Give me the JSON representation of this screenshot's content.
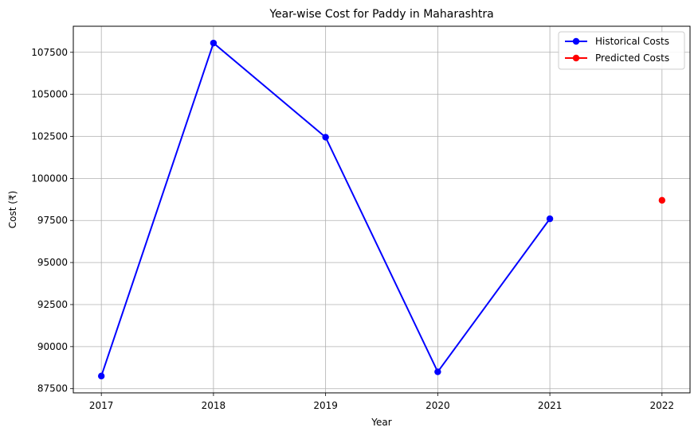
{
  "chart_data": {
    "type": "line",
    "title": "Year-wise Cost for Paddy in Maharashtra",
    "xlabel": "Year",
    "ylabel": "Cost (₹)",
    "x_ticks": [
      "2017",
      "2018",
      "2019",
      "2020",
      "2021",
      "2022"
    ],
    "y_ticks": [
      "87500",
      "90000",
      "92500",
      "95000",
      "97500",
      "100000",
      "102500",
      "105000",
      "107500"
    ],
    "xlim": [
      2016.75,
      2022.25
    ],
    "ylim": [
      87250,
      109050
    ],
    "grid": true,
    "legend_position": "top-right",
    "series": [
      {
        "name": "Historical Costs",
        "color": "#0000ff",
        "marker": "circle",
        "line": true,
        "x": [
          2017,
          2018,
          2019,
          2020,
          2021
        ],
        "y": [
          88250,
          108050,
          102450,
          88500,
          97600
        ]
      },
      {
        "name": "Predicted Costs",
        "color": "#ff0000",
        "marker": "circle",
        "line": true,
        "x": [
          2022
        ],
        "y": [
          98700
        ]
      }
    ]
  }
}
